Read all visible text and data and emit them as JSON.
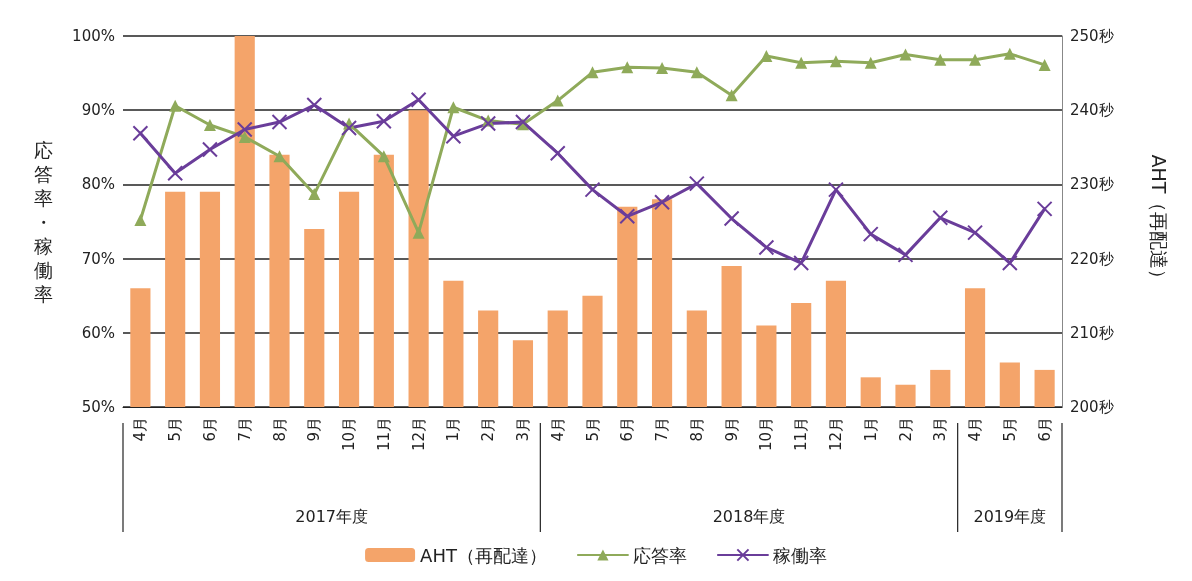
{
  "chart_data": {
    "type": "bar",
    "categories": [
      "4月",
      "5月",
      "6月",
      "7月",
      "8月",
      "9月",
      "10月",
      "11月",
      "12月",
      "1月",
      "2月",
      "3月",
      "4月",
      "5月",
      "6月",
      "7月",
      "8月",
      "9月",
      "10月",
      "11月",
      "12月",
      "1月",
      "2月",
      "3月",
      "4月",
      "5月",
      "6月"
    ],
    "series": [
      {
        "name": "AHT（再配達）",
        "axis": "y2",
        "color": "#f4a46a",
        "values": [
          216,
          229,
          229,
          250,
          234,
          224,
          229,
          234,
          240,
          217,
          213,
          209,
          213,
          215,
          227,
          228,
          213,
          219,
          211,
          214,
          217,
          204,
          203,
          205,
          216,
          206,
          205
        ]
      },
      {
        "name": "応答率",
        "type": "line",
        "color": "#8faa5a",
        "marker": "triangle",
        "values": [
          75.2,
          90.6,
          88,
          86.4,
          83.8,
          78.7,
          88.2,
          83.8,
          73.5,
          90.4,
          88.6,
          88.1,
          91.3,
          95.1,
          95.8,
          95.7,
          95.1,
          92,
          97.3,
          96.4,
          96.6,
          96.4,
          97.5,
          96.8,
          96.8,
          97.6,
          96.1
        ]
      },
      {
        "name": "稼働率",
        "type": "line",
        "color": "#6a3d9a",
        "marker": "cross",
        "values": [
          86.9,
          81.5,
          84.7,
          87.4,
          88.4,
          90.7,
          87.6,
          88.5,
          91.4,
          86.5,
          88.2,
          88.4,
          84.2,
          79.3,
          75.7,
          77.6,
          80.1,
          75.4,
          71.5,
          69.4,
          79.3,
          73.3,
          70.5,
          75.5,
          73.5,
          69.4,
          76.7
        ]
      }
    ],
    "ylabel": "応答率・稼働率",
    "y2label": "AHT（再配達）",
    "ylim": [
      50,
      100
    ],
    "yticks": [
      {
        "value": 50,
        "label": "50%"
      },
      {
        "value": 60,
        "label": "60%"
      },
      {
        "value": 70,
        "label": "70%"
      },
      {
        "value": 80,
        "label": "80%"
      },
      {
        "value": 90,
        "label": "90%"
      },
      {
        "value": 100,
        "label": "100%"
      }
    ],
    "y2lim": [
      200,
      250
    ],
    "y2ticks": [
      {
        "value": 200,
        "label": "200秒"
      },
      {
        "value": 210,
        "label": "210秒"
      },
      {
        "value": 220,
        "label": "220秒"
      },
      {
        "value": 230,
        "label": "230秒"
      },
      {
        "value": 240,
        "label": "240秒"
      },
      {
        "value": 250,
        "label": "250秒"
      }
    ],
    "annotations": [
      "2017年度",
      "2018年度",
      "2019年度"
    ],
    "grid": "y",
    "legend": "bottom",
    "line_style": "solid"
  }
}
